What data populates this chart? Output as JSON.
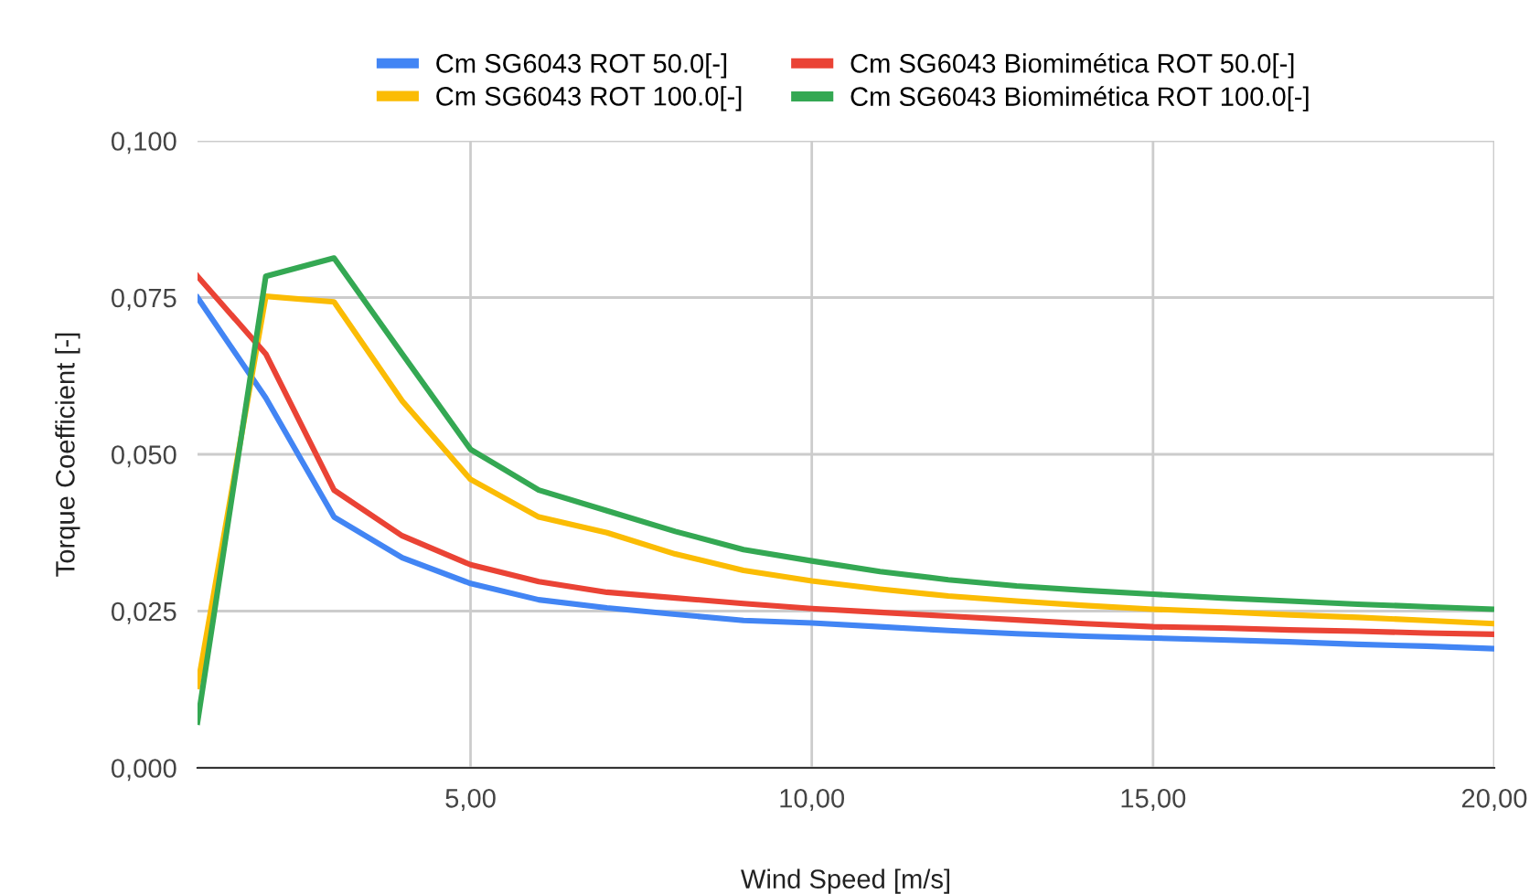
{
  "chart_data": {
    "type": "line",
    "xlabel": "Wind Speed [m/s]",
    "ylabel": "Torque Coefficient [-]",
    "x": [
      1,
      2,
      3,
      4,
      5,
      6,
      7,
      8,
      9,
      10,
      11,
      12,
      13,
      14,
      15,
      16,
      17,
      18,
      19,
      20
    ],
    "series": [
      {
        "name": "Cm SG6043 ROT 50.0[-]",
        "color": "#4285f4",
        "values": [
          0.075,
          0.059,
          0.04,
          0.0335,
          0.0294,
          0.0268,
          0.0255,
          0.0245,
          0.0235,
          0.0231,
          0.0225,
          0.0219,
          0.0214,
          0.021,
          0.0207,
          0.0204,
          0.0201,
          0.0197,
          0.0194,
          0.019
        ]
      },
      {
        "name": "Cm SG6043 ROT 100.0[-]",
        "color": "#fbbc04",
        "values": [
          0.013,
          0.0752,
          0.0743,
          0.0585,
          0.046,
          0.04,
          0.0375,
          0.0341,
          0.0315,
          0.0298,
          0.0285,
          0.0274,
          0.0266,
          0.0259,
          0.0253,
          0.0249,
          0.0244,
          0.024,
          0.0235,
          0.023
        ]
      },
      {
        "name": "Cm SG6043 Biomimética ROT 50.0[-]",
        "color": "#ea4335",
        "values": [
          0.0784,
          0.066,
          0.0443,
          0.037,
          0.0324,
          0.0297,
          0.028,
          0.0271,
          0.0262,
          0.0254,
          0.0248,
          0.0242,
          0.0236,
          0.023,
          0.0225,
          0.0223,
          0.022,
          0.0218,
          0.0215,
          0.0213
        ]
      },
      {
        "name": "Cm SG6043 Biomimética ROT 100.0[-]",
        "color": "#34a853",
        "values": [
          0.0073,
          0.0784,
          0.0813,
          0.066,
          0.0508,
          0.0443,
          0.041,
          0.0377,
          0.0348,
          0.033,
          0.0313,
          0.03,
          0.029,
          0.0283,
          0.0277,
          0.0271,
          0.0266,
          0.0261,
          0.0257,
          0.0253
        ]
      }
    ],
    "xlim": [
      1,
      20
    ],
    "xticks": [
      {
        "value": 5,
        "label": "5,00"
      },
      {
        "value": 10,
        "label": "10,00"
      },
      {
        "value": 15,
        "label": "15,00"
      },
      {
        "value": 20,
        "label": "20,00"
      }
    ],
    "ylim": [
      0,
      0.1
    ],
    "yticks": [
      {
        "value": 0,
        "label": "0,000"
      },
      {
        "value": 0.025,
        "label": "0,025"
      },
      {
        "value": 0.05,
        "label": "0,050"
      },
      {
        "value": 0.075,
        "label": "0,075"
      },
      {
        "value": 0.1,
        "label": "0,100"
      }
    ],
    "grid": true,
    "legend": "top",
    "marker": "none",
    "line_style": "solid"
  }
}
